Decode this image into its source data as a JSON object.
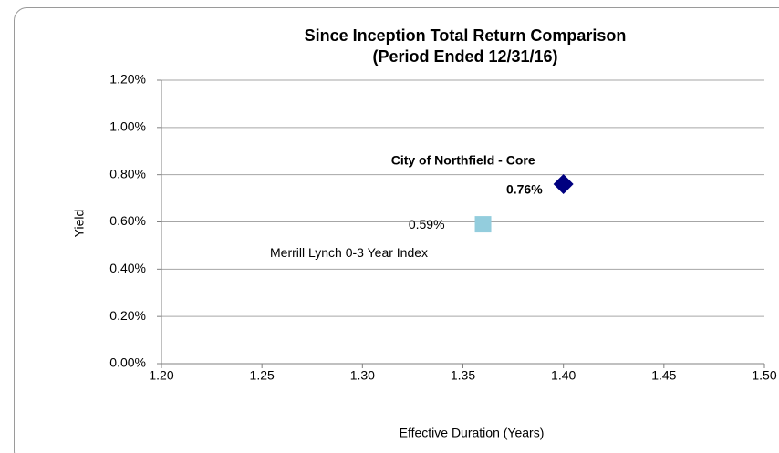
{
  "chart_data": {
    "type": "scatter",
    "title": "Since Inception Total Return Comparison",
    "subtitle": "(Period Ended 12/31/16)",
    "x_label": "Effective Duration (Years)",
    "y_label": "Yield",
    "xlim": [
      1.2,
      1.5
    ],
    "xticks": [
      {
        "value": 1.2,
        "label": "1.20"
      },
      {
        "value": 1.25,
        "label": "1.25"
      },
      {
        "value": 1.3,
        "label": "1.30"
      },
      {
        "value": 1.35,
        "label": "1.35"
      },
      {
        "value": 1.4,
        "label": "1.40"
      },
      {
        "value": 1.45,
        "label": "1.45"
      },
      {
        "value": 1.5,
        "label": "1.50"
      }
    ],
    "ylim": [
      0,
      1.2
    ],
    "yticks": [
      {
        "value": 0,
        "label": "0.00%"
      },
      {
        "value": 0.2,
        "label": "0.20%"
      },
      {
        "value": 0.4,
        "label": "0.40%"
      },
      {
        "value": 0.6,
        "label": "0.60%"
      },
      {
        "value": 0.8,
        "label": "0.80%"
      },
      {
        "value": 1.0,
        "label": "1.00%"
      },
      {
        "value": 1.2,
        "label": "1.20%"
      }
    ],
    "grid": true,
    "series": [
      {
        "name": "City of Northfield - Core",
        "color": "#000080",
        "marker": "diamond",
        "x": [
          1.4
        ],
        "values": [
          0.76
        ],
        "value_labels": [
          "0.76%"
        ]
      },
      {
        "name": "Merrill Lynch 0-3 Year Index",
        "color": "#93cddd",
        "marker": "square",
        "x": [
          1.36
        ],
        "values": [
          0.59
        ],
        "value_labels": [
          "0.59%"
        ]
      }
    ]
  }
}
